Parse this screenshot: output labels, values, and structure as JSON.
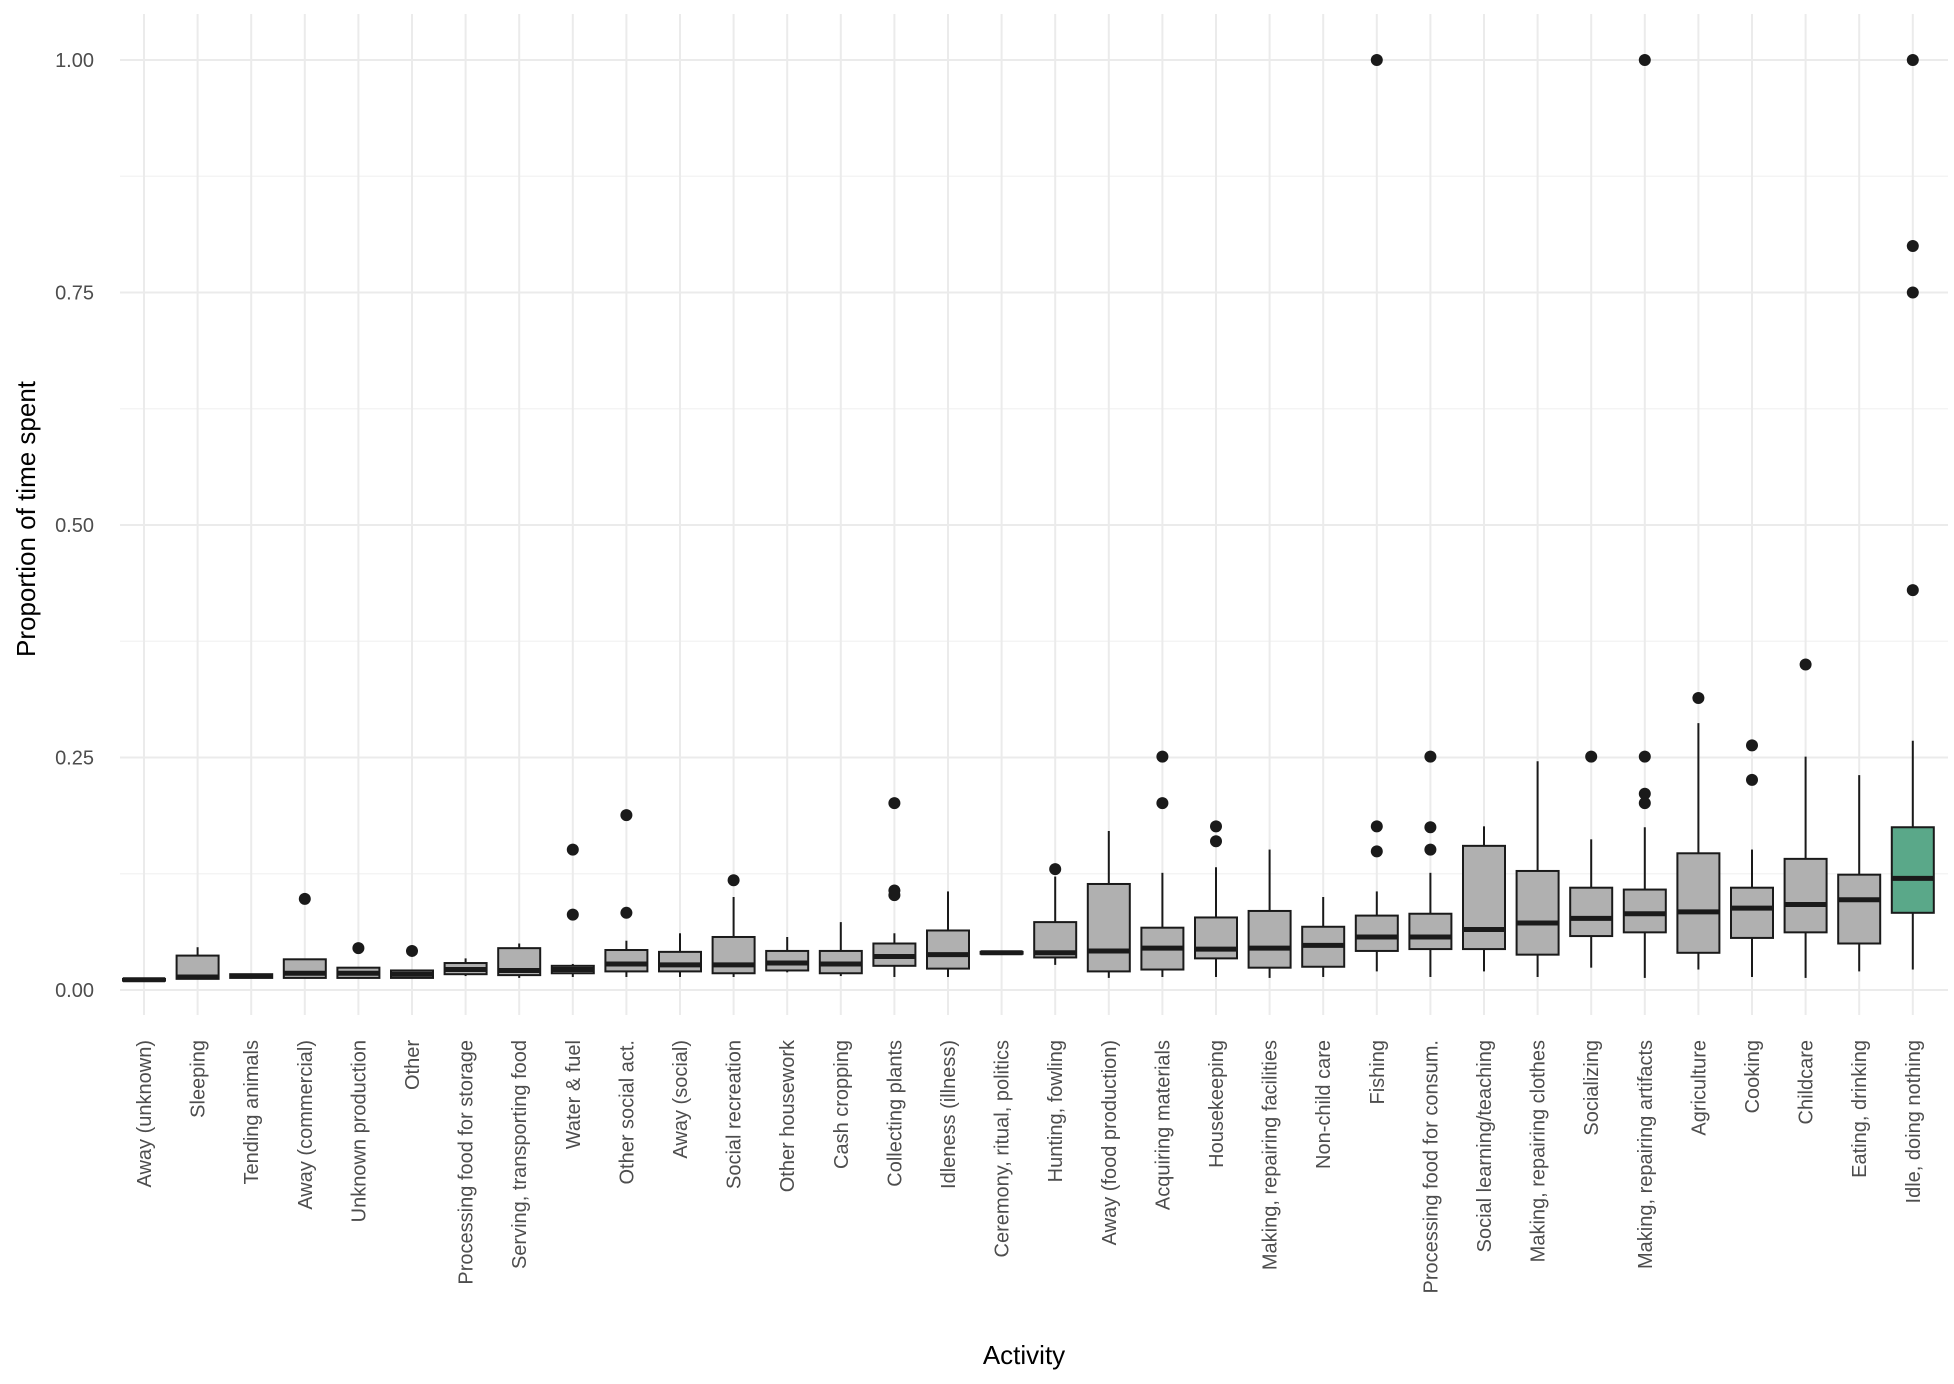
{
  "chart_data": {
    "type": "boxplot",
    "xlabel": "Activity",
    "ylabel": "Proportion of time spent",
    "ylim": [
      -0.03,
      1.05
    ],
    "yticks": [
      0.0,
      0.25,
      0.5,
      0.75,
      1.0
    ],
    "ytick_labels": [
      "0.00",
      "0.25",
      "0.50",
      "0.75",
      "1.00"
    ],
    "grid": true,
    "box_color": "#b0b0b0",
    "highlight_color": "#5aa889",
    "categories": [
      {
        "label": "Away (unknown)",
        "lo": 0.01,
        "q1": 0.01,
        "med": 0.011,
        "q3": 0.012,
        "hi": 0.012,
        "outliers": []
      },
      {
        "label": "Sleeping",
        "lo": 0.012,
        "q1": 0.012,
        "med": 0.014,
        "q3": 0.037,
        "hi": 0.046,
        "outliers": []
      },
      {
        "label": "Tending animals",
        "lo": 0.013,
        "q1": 0.013,
        "med": 0.015,
        "q3": 0.017,
        "hi": 0.017,
        "outliers": []
      },
      {
        "label": "Away (commercial)",
        "lo": 0.013,
        "q1": 0.013,
        "med": 0.018,
        "q3": 0.033,
        "hi": 0.033,
        "outliers": [
          0.098
        ]
      },
      {
        "label": "Unknown production",
        "lo": 0.013,
        "q1": 0.013,
        "med": 0.018,
        "q3": 0.024,
        "hi": 0.024,
        "outliers": [
          0.045
        ]
      },
      {
        "label": "Other",
        "lo": 0.013,
        "q1": 0.013,
        "med": 0.017,
        "q3": 0.021,
        "hi": 0.021,
        "outliers": [
          0.042
        ]
      },
      {
        "label": "Processing food for storage",
        "lo": 0.015,
        "q1": 0.017,
        "med": 0.022,
        "q3": 0.029,
        "hi": 0.034,
        "outliers": []
      },
      {
        "label": "Serving, transporting food",
        "lo": 0.013,
        "q1": 0.016,
        "med": 0.021,
        "q3": 0.045,
        "hi": 0.05,
        "outliers": []
      },
      {
        "label": "Water & fuel",
        "lo": 0.014,
        "q1": 0.018,
        "med": 0.022,
        "q3": 0.026,
        "hi": 0.028,
        "outliers": [
          0.081,
          0.151
        ]
      },
      {
        "label": "Other social act.",
        "lo": 0.014,
        "q1": 0.02,
        "med": 0.028,
        "q3": 0.043,
        "hi": 0.053,
        "outliers": [
          0.083,
          0.188
        ]
      },
      {
        "label": "Away (social)",
        "lo": 0.014,
        "q1": 0.02,
        "med": 0.027,
        "q3": 0.041,
        "hi": 0.061,
        "outliers": []
      },
      {
        "label": "Social recreation",
        "lo": 0.014,
        "q1": 0.018,
        "med": 0.027,
        "q3": 0.057,
        "hi": 0.1,
        "outliers": [
          0.118
        ]
      },
      {
        "label": "Other housework",
        "lo": 0.019,
        "q1": 0.021,
        "med": 0.029,
        "q3": 0.042,
        "hi": 0.057,
        "outliers": []
      },
      {
        "label": "Cash cropping",
        "lo": 0.015,
        "q1": 0.018,
        "med": 0.028,
        "q3": 0.042,
        "hi": 0.073,
        "outliers": []
      },
      {
        "label": "Collecting plants",
        "lo": 0.014,
        "q1": 0.026,
        "med": 0.036,
        "q3": 0.05,
        "hi": 0.061,
        "outliers": [
          0.102,
          0.107,
          0.201
        ]
      },
      {
        "label": "Idleness (illness)",
        "lo": 0.014,
        "q1": 0.023,
        "med": 0.038,
        "q3": 0.064,
        "hi": 0.106,
        "outliers": []
      },
      {
        "label": "Ceremony, ritual, politics",
        "lo": 0.039,
        "q1": 0.039,
        "med": 0.04,
        "q3": 0.041,
        "hi": 0.041,
        "outliers": []
      },
      {
        "label": "Hunting, fowling",
        "lo": 0.027,
        "q1": 0.035,
        "med": 0.04,
        "q3": 0.073,
        "hi": 0.122,
        "outliers": [
          0.13
        ]
      },
      {
        "label": "Away (food production)",
        "lo": 0.013,
        "q1": 0.02,
        "med": 0.042,
        "q3": 0.114,
        "hi": 0.171,
        "outliers": []
      },
      {
        "label": "Acquiring materials",
        "lo": 0.014,
        "q1": 0.022,
        "med": 0.045,
        "q3": 0.067,
        "hi": 0.126,
        "outliers": [
          0.201,
          0.251
        ]
      },
      {
        "label": "Housekeeping",
        "lo": 0.014,
        "q1": 0.034,
        "med": 0.044,
        "q3": 0.078,
        "hi": 0.132,
        "outliers": [
          0.16,
          0.176
        ]
      },
      {
        "label": "Making, repairing facilities",
        "lo": 0.013,
        "q1": 0.024,
        "med": 0.045,
        "q3": 0.085,
        "hi": 0.151,
        "outliers": []
      },
      {
        "label": "Non-child care",
        "lo": 0.014,
        "q1": 0.025,
        "med": 0.048,
        "q3": 0.068,
        "hi": 0.1,
        "outliers": []
      },
      {
        "label": "Fishing",
        "lo": 0.02,
        "q1": 0.042,
        "med": 0.057,
        "q3": 0.08,
        "hi": 0.106,
        "outliers": [
          0.149,
          0.176,
          1.0
        ]
      },
      {
        "label": "Processing food for consum.",
        "lo": 0.014,
        "q1": 0.044,
        "med": 0.057,
        "q3": 0.082,
        "hi": 0.126,
        "outliers": [
          0.151,
          0.175,
          0.251
        ]
      },
      {
        "label": "Social learning/teaching",
        "lo": 0.02,
        "q1": 0.044,
        "med": 0.065,
        "q3": 0.155,
        "hi": 0.176,
        "outliers": []
      },
      {
        "label": "Making, repairing clothes",
        "lo": 0.014,
        "q1": 0.038,
        "med": 0.072,
        "q3": 0.128,
        "hi": 0.246,
        "outliers": []
      },
      {
        "label": "Socializing",
        "lo": 0.024,
        "q1": 0.058,
        "med": 0.077,
        "q3": 0.11,
        "hi": 0.162,
        "outliers": [
          0.251
        ]
      },
      {
        "label": "Making, repairing artifacts",
        "lo": 0.013,
        "q1": 0.062,
        "med": 0.082,
        "q3": 0.108,
        "hi": 0.175,
        "outliers": [
          0.201,
          0.211,
          0.251,
          1.0
        ]
      },
      {
        "label": "Agriculture",
        "lo": 0.022,
        "q1": 0.04,
        "med": 0.084,
        "q3": 0.147,
        "hi": 0.287,
        "outliers": [
          0.314
        ]
      },
      {
        "label": "Cooking",
        "lo": 0.014,
        "q1": 0.056,
        "med": 0.088,
        "q3": 0.11,
        "hi": 0.151,
        "outliers": [
          0.226,
          0.263
        ]
      },
      {
        "label": "Childcare",
        "lo": 0.013,
        "q1": 0.062,
        "med": 0.092,
        "q3": 0.141,
        "hi": 0.251,
        "outliers": [
          0.35
        ]
      },
      {
        "label": "Eating, drinking",
        "lo": 0.02,
        "q1": 0.05,
        "med": 0.097,
        "q3": 0.124,
        "hi": 0.231,
        "outliers": []
      },
      {
        "label": "Idle, doing nothing",
        "lo": 0.022,
        "q1": 0.083,
        "med": 0.12,
        "q3": 0.175,
        "hi": 0.268,
        "outliers": [
          0.43,
          0.75,
          0.8,
          1.0
        ],
        "highlight": true
      }
    ]
  }
}
